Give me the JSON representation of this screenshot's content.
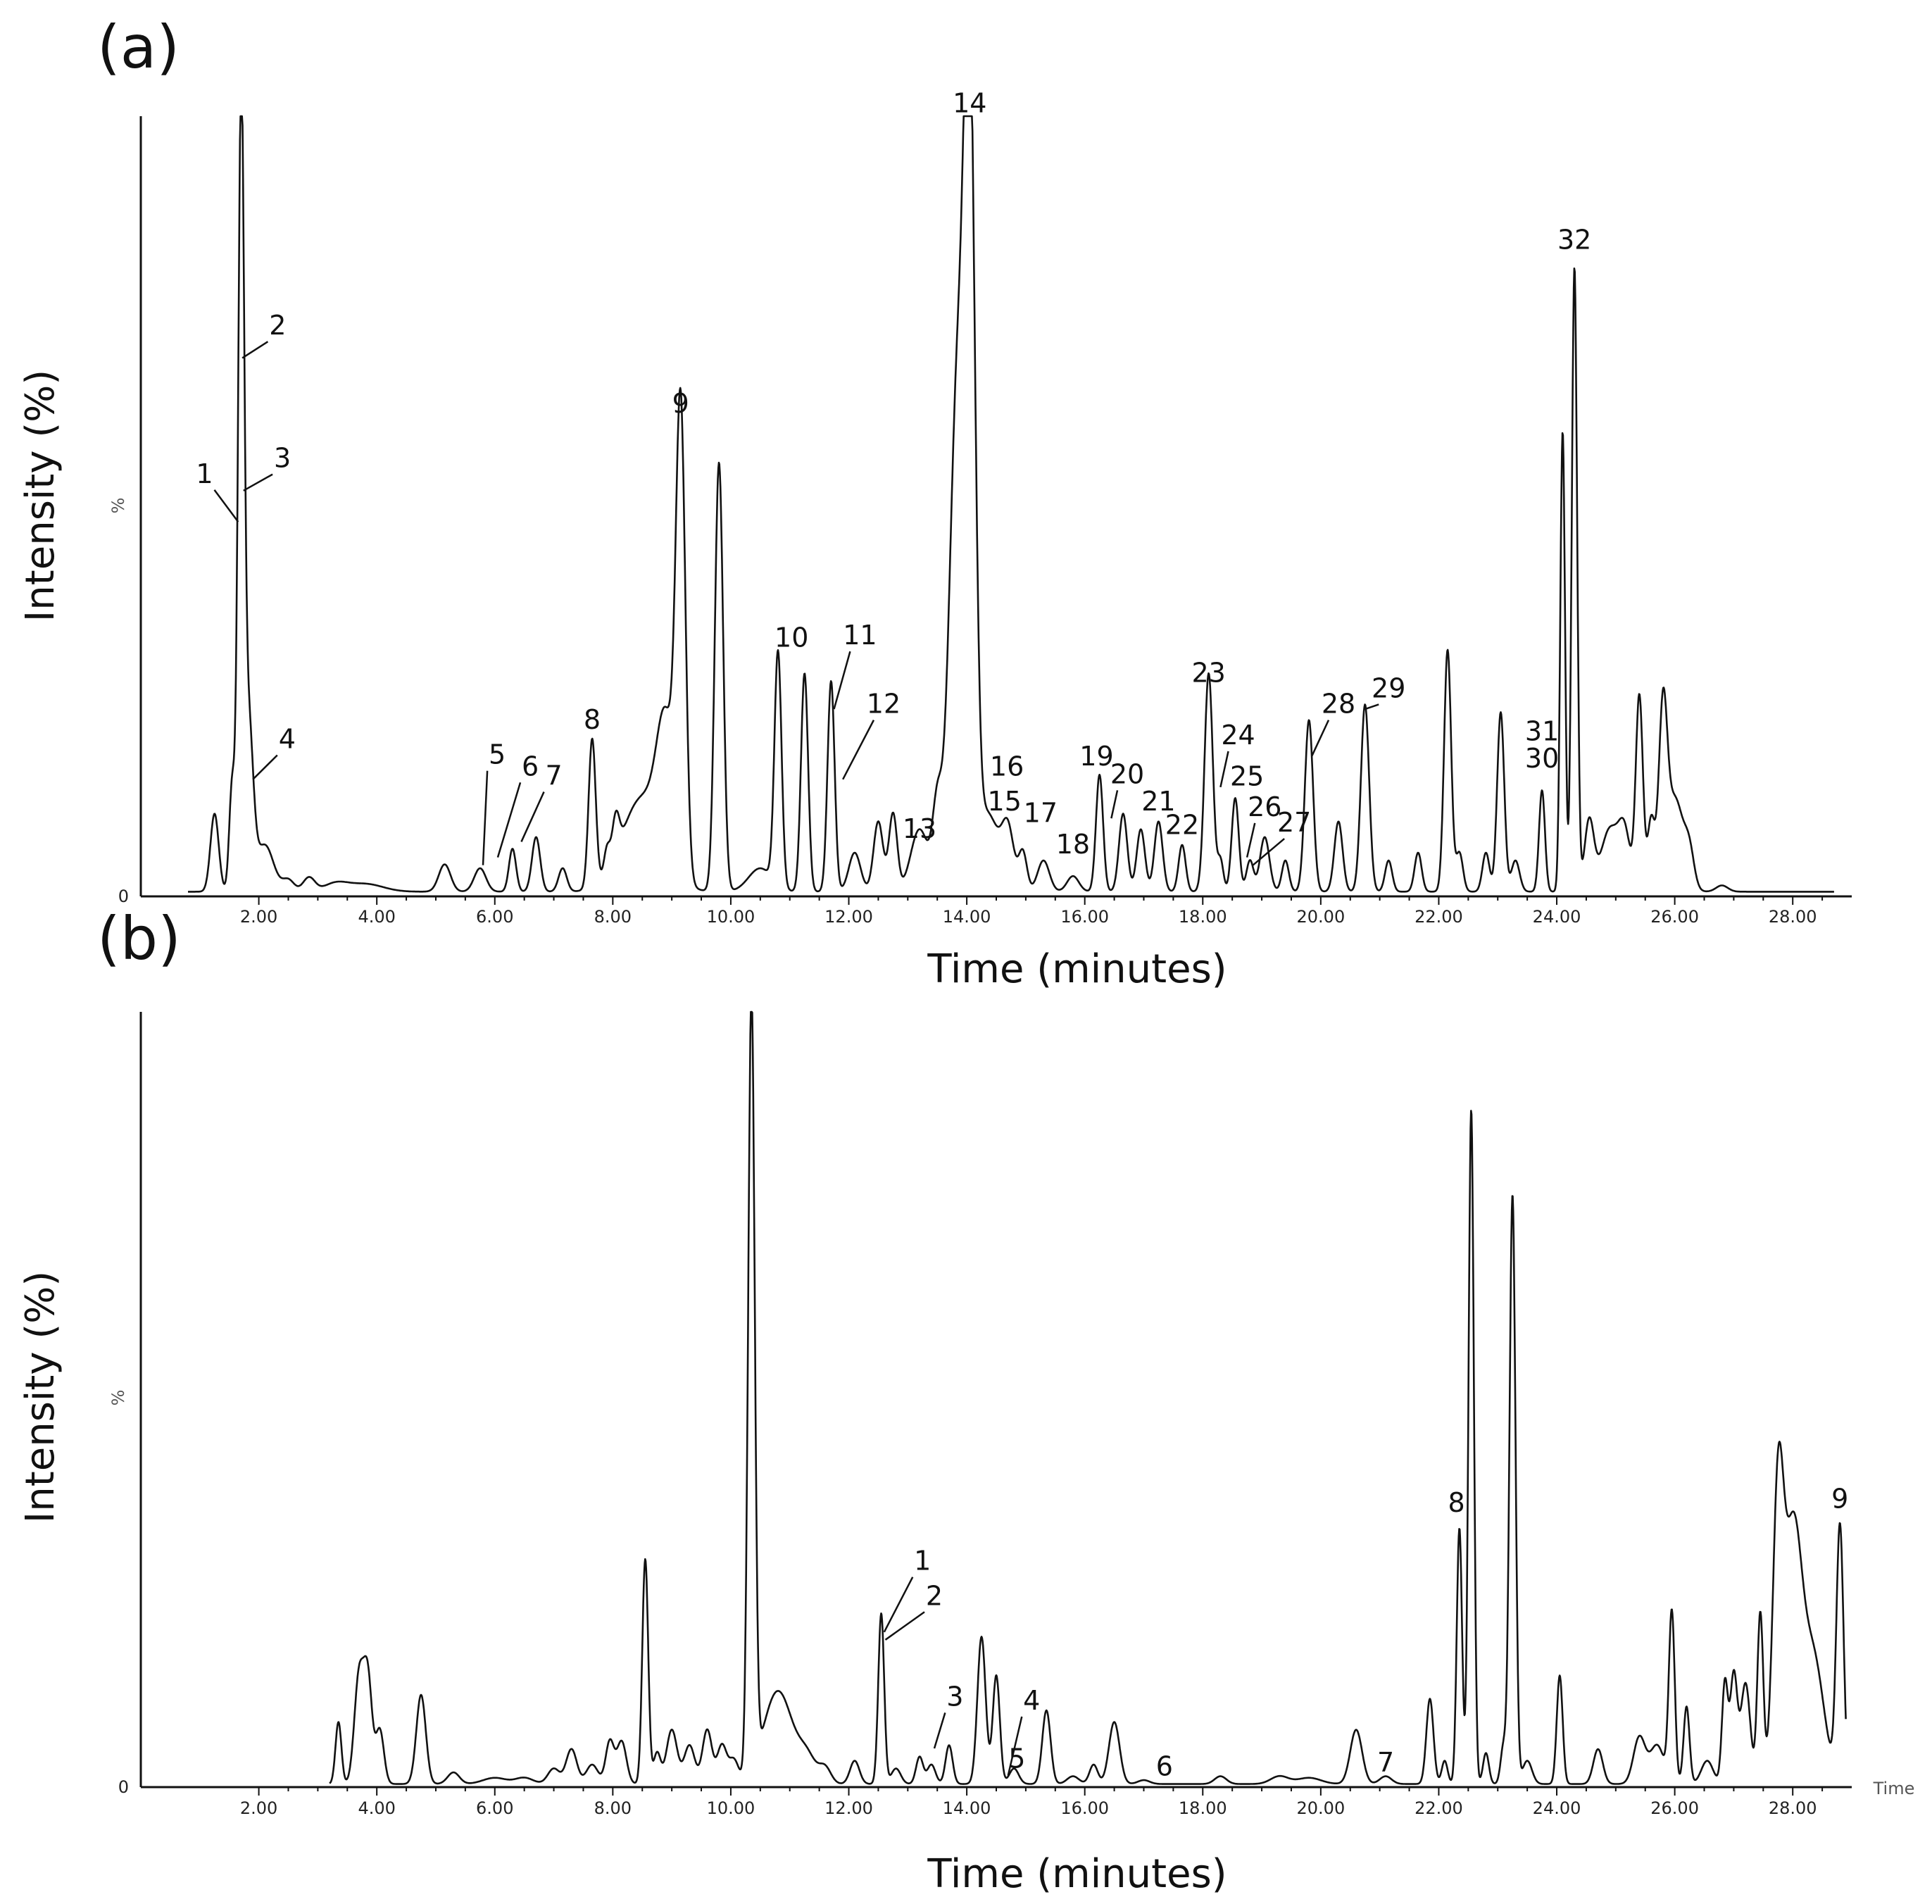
{
  "chart_data": [
    {
      "type": "line",
      "panel_label": "(a)",
      "xlabel": "Time (minutes)",
      "ylabel": "Intensity (%)",
      "y_marker": "%",
      "y_zero_label": "0",
      "x_unit_label": "",
      "xlim": [
        0,
        29
      ],
      "ylim": [
        0,
        100
      ],
      "x_ticks": [
        {
          "v": 2,
          "label": "2.00"
        },
        {
          "v": 4,
          "label": "4.00"
        },
        {
          "v": 6,
          "label": "6.00"
        },
        {
          "v": 8,
          "label": "8.00"
        },
        {
          "v": 10,
          "label": "10.00"
        },
        {
          "v": 12,
          "label": "12.00"
        },
        {
          "v": 14,
          "label": "14.00"
        },
        {
          "v": 16,
          "label": "16.00"
        },
        {
          "v": 18,
          "label": "18.00"
        },
        {
          "v": 20,
          "label": "20.00"
        },
        {
          "v": 22,
          "label": "22.00"
        },
        {
          "v": 24,
          "label": "24.00"
        },
        {
          "v": 26,
          "label": "26.00"
        },
        {
          "v": 28,
          "label": "28.00"
        }
      ],
      "baseline": 0.6,
      "trace_range": [
        0.8,
        28.7
      ],
      "peaks": [
        [
          1.25,
          10,
          0.07
        ],
        [
          1.55,
          14,
          0.05
        ],
        [
          1.7,
          98,
          0.05
        ],
        [
          1.82,
          22,
          0.08
        ],
        [
          2.1,
          6,
          0.15
        ],
        [
          2.5,
          1.5,
          0.1
        ],
        [
          2.85,
          1.8,
          0.1
        ],
        [
          3.3,
          1,
          0.2
        ],
        [
          3.8,
          1,
          0.3
        ],
        [
          5.15,
          3.5,
          0.1
        ],
        [
          5.75,
          3,
          0.1
        ],
        [
          6.3,
          5.5,
          0.06
        ],
        [
          6.7,
          7,
          0.07
        ],
        [
          7.15,
          3,
          0.07
        ],
        [
          7.65,
          19,
          0.06
        ],
        [
          7.9,
          3,
          0.05
        ],
        [
          8.05,
          5,
          0.06
        ],
        [
          8.5,
          12,
          0.35
        ],
        [
          8.9,
          17,
          0.15
        ],
        [
          9.15,
          58,
          0.08
        ],
        [
          9.8,
          55,
          0.07
        ],
        [
          10.5,
          3,
          0.2
        ],
        [
          10.8,
          30,
          0.06
        ],
        [
          11.25,
          28,
          0.06
        ],
        [
          11.7,
          27,
          0.06
        ],
        [
          12.1,
          5,
          0.1
        ],
        [
          12.5,
          9,
          0.08
        ],
        [
          12.75,
          10,
          0.07
        ],
        [
          13.2,
          8,
          0.15
        ],
        [
          13.5,
          10,
          0.08
        ],
        [
          13.85,
          66,
          0.14
        ],
        [
          14.05,
          90,
          0.09
        ],
        [
          14.35,
          10,
          0.2
        ],
        [
          14.7,
          7,
          0.1
        ],
        [
          14.95,
          5,
          0.07
        ],
        [
          15.3,
          4,
          0.1
        ],
        [
          15.8,
          2,
          0.1
        ],
        [
          16.25,
          15,
          0.06
        ],
        [
          16.65,
          10,
          0.07
        ],
        [
          16.95,
          8,
          0.07
        ],
        [
          17.25,
          9,
          0.07
        ],
        [
          17.65,
          6,
          0.06
        ],
        [
          18.1,
          28,
          0.07
        ],
        [
          18.3,
          4,
          0.05
        ],
        [
          18.55,
          12,
          0.06
        ],
        [
          18.8,
          4,
          0.06
        ],
        [
          19.05,
          7,
          0.08
        ],
        [
          19.4,
          4,
          0.06
        ],
        [
          19.8,
          22,
          0.07
        ],
        [
          20.3,
          9,
          0.07
        ],
        [
          20.75,
          24,
          0.07
        ],
        [
          21.15,
          4,
          0.06
        ],
        [
          21.65,
          5,
          0.06
        ],
        [
          22.15,
          31,
          0.06
        ],
        [
          22.35,
          5,
          0.06
        ],
        [
          22.8,
          5,
          0.06
        ],
        [
          23.05,
          23,
          0.06
        ],
        [
          23.3,
          4,
          0.07
        ],
        [
          23.75,
          13,
          0.05
        ],
        [
          24.1,
          59,
          0.04
        ],
        [
          24.3,
          80,
          0.045
        ],
        [
          24.55,
          9,
          0.08
        ],
        [
          24.9,
          8,
          0.15
        ],
        [
          25.15,
          7,
          0.1
        ],
        [
          25.4,
          25,
          0.06
        ],
        [
          25.6,
          9,
          0.06
        ],
        [
          25.8,
          21,
          0.07
        ],
        [
          26.0,
          12,
          0.15
        ],
        [
          26.25,
          4,
          0.08
        ],
        [
          26.8,
          0.8,
          0.1
        ]
      ],
      "annotations": [
        {
          "label": "1",
          "x": 1.65,
          "y": 48,
          "lx": 1.08,
          "ly": 53
        },
        {
          "label": "2",
          "x": 1.72,
          "y": 69,
          "lx": 2.32,
          "ly": 72
        },
        {
          "label": "3",
          "x": 1.74,
          "y": 52,
          "lx": 2.4,
          "ly": 55
        },
        {
          "label": "4",
          "x": 1.9,
          "y": 15,
          "lx": 2.48,
          "ly": 19
        },
        {
          "label": "5",
          "x": 5.8,
          "y": 4,
          "lx": 6.04,
          "ly": 17
        },
        {
          "label": "6",
          "x": 6.05,
          "y": 5,
          "lx": 6.6,
          "ly": 15.5
        },
        {
          "label": "7",
          "x": 6.45,
          "y": 7,
          "lx": 7.0,
          "ly": 14.3
        },
        {
          "label": "8",
          "x": 7.65,
          "y": 19,
          "lx": 7.65,
          "ly": 21.5
        },
        {
          "label": "9",
          "x": 9.15,
          "y": 58,
          "lx": 9.15,
          "ly": 62
        },
        {
          "label": "10",
          "x": 10.9,
          "y": 23,
          "lx": 11.03,
          "ly": 32
        },
        {
          "label": "11",
          "x": 11.75,
          "y": 24,
          "lx": 12.19,
          "ly": 32.3
        },
        {
          "label": "12",
          "x": 11.9,
          "y": 15,
          "lx": 12.59,
          "ly": 23.5
        },
        {
          "label": "13",
          "x": 13.2,
          "y": 6,
          "lx": 13.2,
          "ly": 7.5
        },
        {
          "label": "14",
          "x": 14.05,
          "y": 90,
          "lx": 14.05,
          "ly": 100.5
        },
        {
          "label": "15",
          "x": 14.5,
          "y": 7,
          "lx": 14.64,
          "ly": 11
        },
        {
          "label": "16",
          "x": 14.6,
          "y": 10,
          "lx": 14.68,
          "ly": 15.5
        },
        {
          "label": "17",
          "x": 15.25,
          "y": 8,
          "lx": 15.25,
          "ly": 9.5
        },
        {
          "label": "18",
          "x": 15.8,
          "y": 5,
          "lx": 15.8,
          "ly": 5.5
        },
        {
          "label": "19",
          "x": 16.2,
          "y": 15,
          "lx": 16.2,
          "ly": 16.8
        },
        {
          "label": "20",
          "x": 16.45,
          "y": 10,
          "lx": 16.72,
          "ly": 14.5
        },
        {
          "label": "21",
          "x": 17.25,
          "y": 9,
          "lx": 17.25,
          "ly": 11
        },
        {
          "label": "22",
          "x": 17.65,
          "y": 6,
          "lx": 17.65,
          "ly": 8
        },
        {
          "label": "23",
          "x": 18.1,
          "y": 28,
          "lx": 18.1,
          "ly": 27.5
        },
        {
          "label": "24",
          "x": 18.3,
          "y": 14,
          "lx": 18.6,
          "ly": 19.5
        },
        {
          "label": "25",
          "x": 18.55,
          "y": 12,
          "lx": 18.75,
          "ly": 14.2
        },
        {
          "label": "26",
          "x": 18.75,
          "y": 5,
          "lx": 19.05,
          "ly": 10.3
        },
        {
          "label": "27",
          "x": 18.85,
          "y": 4,
          "lx": 19.55,
          "ly": 8.3
        },
        {
          "label": "28",
          "x": 19.85,
          "y": 18,
          "lx": 20.3,
          "ly": 23.5
        },
        {
          "label": "29",
          "x": 20.75,
          "y": 24,
          "lx": 21.15,
          "ly": 25.5
        },
        {
          "label": "30",
          "x": 23.75,
          "y": 13,
          "lx": 23.75,
          "ly": 16.5
        },
        {
          "label": "31",
          "x": 23.75,
          "y": 13,
          "lx": 23.75,
          "ly": 20
        },
        {
          "label": "32",
          "x": 24.3,
          "y": 80,
          "lx": 24.3,
          "ly": 83
        }
      ]
    },
    {
      "type": "line",
      "panel_label": "(b)",
      "xlabel": "Time (minutes)",
      "ylabel": "Intensity (%)",
      "y_marker": "%",
      "y_zero_label": "0",
      "x_unit_label": "Time",
      "xlim": [
        0,
        29
      ],
      "ylim": [
        0,
        100
      ],
      "x_ticks": [
        {
          "v": 2,
          "label": "2.00"
        },
        {
          "v": 4,
          "label": "4.00"
        },
        {
          "v": 6,
          "label": "6.00"
        },
        {
          "v": 8,
          "label": "8.00"
        },
        {
          "v": 10,
          "label": "10.00"
        },
        {
          "v": 12,
          "label": "12.00"
        },
        {
          "v": 14,
          "label": "14.00"
        },
        {
          "v": 16,
          "label": "16.00"
        },
        {
          "v": 18,
          "label": "18.00"
        },
        {
          "v": 20,
          "label": "20.00"
        },
        {
          "v": 22,
          "label": "22.00"
        },
        {
          "v": 24,
          "label": "24.00"
        },
        {
          "v": 26,
          "label": "26.00"
        },
        {
          "v": 28,
          "label": "28.00"
        }
      ],
      "baseline": 0.4,
      "trace_range": [
        3.2,
        28.9
      ],
      "peaks": [
        [
          3.35,
          8,
          0.05
        ],
        [
          3.7,
          14,
          0.08
        ],
        [
          3.85,
          13,
          0.07
        ],
        [
          4.05,
          7,
          0.07
        ],
        [
          4.75,
          11.5,
          0.08
        ],
        [
          5.3,
          1.5,
          0.1
        ],
        [
          6.0,
          0.8,
          0.2
        ],
        [
          6.5,
          0.8,
          0.15
        ],
        [
          7.0,
          2,
          0.1
        ],
        [
          7.3,
          4.5,
          0.09
        ],
        [
          7.65,
          2.5,
          0.1
        ],
        [
          7.95,
          5.5,
          0.07
        ],
        [
          8.15,
          5.5,
          0.08
        ],
        [
          8.55,
          29,
          0.05
        ],
        [
          8.75,
          4,
          0.06
        ],
        [
          9.0,
          7,
          0.09
        ],
        [
          9.3,
          5,
          0.09
        ],
        [
          9.6,
          7,
          0.08
        ],
        [
          9.85,
          5,
          0.08
        ],
        [
          10.05,
          3,
          0.08
        ],
        [
          10.35,
          100,
          0.055
        ],
        [
          10.8,
          12,
          0.25
        ],
        [
          11.3,
          3,
          0.15
        ],
        [
          11.6,
          2,
          0.1
        ],
        [
          12.1,
          3,
          0.08
        ],
        [
          12.55,
          22,
          0.05
        ],
        [
          12.8,
          2,
          0.08
        ],
        [
          13.2,
          3.5,
          0.06
        ],
        [
          13.4,
          2.5,
          0.07
        ],
        [
          13.7,
          5,
          0.06
        ],
        [
          14.25,
          19,
          0.07
        ],
        [
          14.5,
          14,
          0.06
        ],
        [
          14.8,
          2,
          0.08
        ],
        [
          15.35,
          9.5,
          0.07
        ],
        [
          15.8,
          1,
          0.1
        ],
        [
          16.15,
          2.5,
          0.07
        ],
        [
          16.5,
          8,
          0.09
        ],
        [
          17.0,
          0.5,
          0.1
        ],
        [
          18.3,
          1,
          0.1
        ],
        [
          19.3,
          1,
          0.15
        ],
        [
          19.8,
          0.8,
          0.2
        ],
        [
          20.6,
          7,
          0.1
        ],
        [
          21.1,
          1,
          0.1
        ],
        [
          21.85,
          11,
          0.06
        ],
        [
          22.1,
          3,
          0.05
        ],
        [
          22.35,
          33,
          0.045
        ],
        [
          22.55,
          87,
          0.045
        ],
        [
          22.8,
          4,
          0.05
        ],
        [
          23.1,
          5,
          0.05
        ],
        [
          23.25,
          76,
          0.05
        ],
        [
          23.5,
          3,
          0.08
        ],
        [
          24.05,
          14,
          0.05
        ],
        [
          24.7,
          4.5,
          0.08
        ],
        [
          25.4,
          6,
          0.1
        ],
        [
          25.7,
          5,
          0.12
        ],
        [
          25.95,
          22,
          0.05
        ],
        [
          26.2,
          10,
          0.05
        ],
        [
          26.55,
          3,
          0.1
        ],
        [
          26.85,
          13,
          0.05
        ],
        [
          27.0,
          14,
          0.06
        ],
        [
          27.2,
          13,
          0.08
        ],
        [
          27.45,
          22,
          0.05
        ],
        [
          27.75,
          35,
          0.09
        ],
        [
          28.0,
          32,
          0.15
        ],
        [
          28.35,
          16,
          0.18
        ],
        [
          28.8,
          33,
          0.06
        ]
      ],
      "annotations": [
        {
          "label": "1",
          "x": 12.6,
          "y": 20,
          "lx": 13.25,
          "ly": 28
        },
        {
          "label": "2",
          "x": 12.62,
          "y": 19,
          "lx": 13.45,
          "ly": 23.5
        },
        {
          "label": "3",
          "x": 13.45,
          "y": 5,
          "lx": 13.8,
          "ly": 10.5
        },
        {
          "label": "4",
          "x": 14.7,
          "y": 1.5,
          "lx": 15.1,
          "ly": 10
        },
        {
          "label": "5",
          "x": 14.85,
          "y": 1.5,
          "lx": 14.85,
          "ly": 2.5
        },
        {
          "label": "6",
          "x": 17.35,
          "y": 0.5,
          "lx": 17.35,
          "ly": 1.5
        },
        {
          "label": "7",
          "x": 21.1,
          "y": 1,
          "lx": 21.1,
          "ly": 2
        },
        {
          "label": "8",
          "x": 22.35,
          "y": 33,
          "lx": 22.3,
          "ly": 35.5
        },
        {
          "label": "9",
          "x": 28.8,
          "y": 33,
          "lx": 28.8,
          "ly": 36
        }
      ]
    }
  ]
}
